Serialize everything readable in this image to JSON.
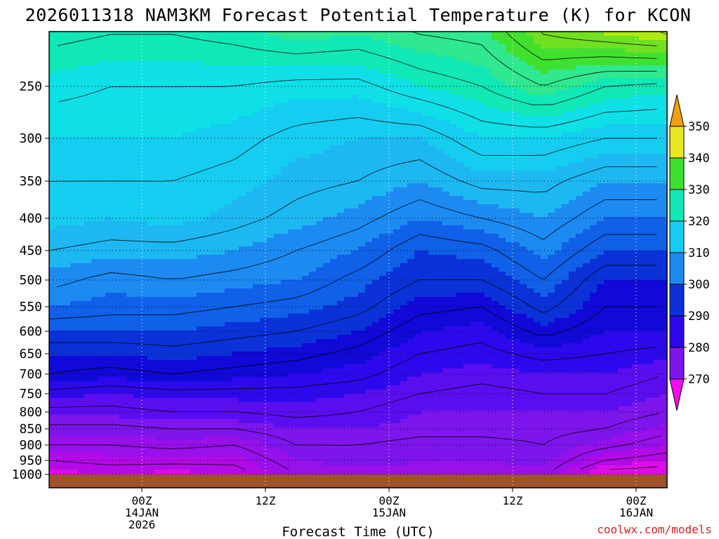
{
  "chart_data": {
    "type": "heatmap",
    "title": "2026011318 NAM3KM Forecast Potential Temperature (K) for KCON",
    "xlabel": "Forecast Time (UTC)",
    "ylabel": "",
    "credit": "coolwx.com/models",
    "units": "K",
    "y_ticks": [
      250,
      300,
      350,
      400,
      450,
      500,
      550,
      600,
      650,
      700,
      750,
      800,
      850,
      900,
      950,
      1000
    ],
    "y_tick_labels": [
      "250",
      "300",
      "350",
      "400",
      "450",
      "500",
      "550",
      "600",
      "650",
      "700",
      "750",
      "800",
      "850",
      "900",
      "950",
      "1000"
    ],
    "ylim": [
      1000,
      200
    ],
    "x_range_hours": [
      -3,
      57
    ],
    "x_ticks": [
      {
        "hour": 6,
        "lines": [
          "00Z",
          "14JAN",
          "2026"
        ]
      },
      {
        "hour": 18,
        "lines": [
          "12Z"
        ]
      },
      {
        "hour": 30,
        "lines": [
          "00Z",
          "15JAN"
        ]
      },
      {
        "hour": 42,
        "lines": [
          "12Z"
        ]
      },
      {
        "hour": 54,
        "lines": [
          "00Z",
          "16JAN"
        ]
      }
    ],
    "colorbar_labels": [
      "350",
      "340",
      "330",
      "320",
      "310",
      "300",
      "290",
      "280",
      "270"
    ],
    "levels": [
      268,
      272,
      276,
      280,
      284,
      288,
      292,
      296,
      300,
      304,
      308,
      312,
      316,
      320,
      324,
      328,
      332,
      336,
      340,
      344,
      348,
      352
    ],
    "colors": [
      "#f00df0",
      "#dd0de8",
      "#b30ae8",
      "#9810ea",
      "#7d15ec",
      "#5a0ef0",
      "#2c09ec",
      "#1009d8",
      "#0a32d8",
      "#1060e8",
      "#1d8af2",
      "#1db8f2",
      "#15cdf0",
      "#0fe0e8",
      "#10e8b6",
      "#30e890",
      "#40e030",
      "#70e020",
      "#b0ea10",
      "#e8e820",
      "#f0cd20",
      "#f0a010"
    ],
    "ground_color": "#a0522d",
    "times": [
      -3,
      3,
      9,
      15,
      21,
      27,
      33,
      39,
      45,
      51,
      57
    ],
    "profiles_labels": [
      "surface",
      "1000",
      "950",
      "900",
      "850",
      "800",
      "750",
      "700",
      "650",
      "600",
      "550",
      "500",
      "450",
      "400",
      "350",
      "300",
      "250",
      "200"
    ],
    "profiles": [
      [
        274,
        275,
        278,
        282,
        285,
        289,
        293,
        298,
        300,
        304,
        308,
        311,
        314,
        317,
        318,
        320,
        323,
        327
      ],
      [
        275,
        276,
        279,
        282,
        285,
        289,
        292,
        297,
        300,
        304,
        307,
        309,
        313,
        316,
        318,
        320,
        322,
        326
      ],
      [
        273,
        275,
        279,
        283,
        286,
        290,
        293,
        298,
        301,
        304,
        307,
        310,
        313,
        317,
        318,
        320,
        322,
        326
      ],
      [
        275,
        276,
        279,
        282,
        286,
        290,
        293,
        297,
        300,
        303,
        306,
        309,
        312,
        315,
        317,
        319,
        322,
        327
      ],
      [
        281,
        282,
        284,
        286,
        288,
        291,
        293,
        296,
        299,
        302,
        305,
        308,
        310,
        313,
        315,
        317,
        321,
        329
      ],
      [
        283,
        283,
        285,
        286,
        288,
        290,
        292,
        295,
        297,
        300,
        303,
        305,
        308,
        311,
        314,
        316,
        321,
        328
      ],
      [
        282,
        283,
        284,
        285,
        287,
        288,
        290,
        292,
        294,
        296,
        299,
        302,
        304,
        308,
        312,
        316,
        324,
        330
      ],
      [
        282,
        282,
        284,
        285,
        287,
        288,
        289,
        291,
        293,
        295,
        298,
        302,
        305,
        310,
        315,
        320,
        326,
        331
      ],
      [
        282,
        283,
        285,
        286,
        287,
        288,
        290,
        292,
        295,
        299,
        303,
        306,
        309,
        312,
        315,
        320,
        330,
        338
      ],
      [
        270,
        272,
        278,
        283,
        286,
        288,
        290,
        292,
        294,
        296,
        298,
        300,
        304,
        308,
        312,
        318,
        326,
        340
      ],
      [
        270,
        271,
        276,
        280,
        283,
        286,
        288,
        290,
        293,
        296,
        298,
        300,
        304,
        308,
        312,
        318,
        325,
        342
      ]
    ]
  }
}
